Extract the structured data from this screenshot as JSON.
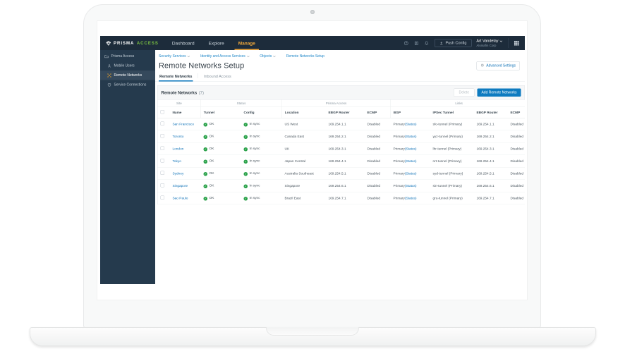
{
  "colors": {
    "nav_bg": "#1d2c3b",
    "sidebar_bg": "#253a4d",
    "sidebar_active_bg": "#35495c",
    "brand_green": "#7ac142",
    "active_yellow": "#f2a93b",
    "link_blue": "#1173b8",
    "breadcrumb_blue": "#1d86c8",
    "primary_button_blue": "#0e7bc0",
    "status_green": "#28a148",
    "tab_underline_blue": "#0f7ac0"
  },
  "nav": {
    "brand": {
      "word1": "PRISMA",
      "word2": "ACCESS"
    },
    "menu": [
      {
        "label": "Dashboard",
        "active": false
      },
      {
        "label": "Explore",
        "active": false
      },
      {
        "label": "Manage",
        "active": true
      }
    ],
    "icons": [
      "help-icon",
      "tasks-icon",
      "bell-icon"
    ],
    "push_config_label": "Push Config",
    "user": {
      "name": "Art Vandelay",
      "org": "Aloisafin Corp"
    }
  },
  "sidebar": {
    "root": {
      "label": "Prisma Access",
      "icon": "folder-icon"
    },
    "items": [
      {
        "label": "Mobile Users",
        "icon": "mobile-users-icon",
        "active": false
      },
      {
        "label": "Remote Networks",
        "icon": "remote-networks-icon",
        "active": true
      },
      {
        "label": "Service Connections",
        "icon": "service-connections-icon",
        "active": false
      }
    ]
  },
  "breadcrumb": [
    {
      "label": "Security Services",
      "caret": true
    },
    {
      "label": "Identity and Access Services",
      "caret": true
    },
    {
      "label": "Objects",
      "caret": true
    },
    {
      "label": "Remote Networks Setup",
      "caret": false
    }
  ],
  "page": {
    "title": "Remote Networks Setup",
    "advanced_settings_label": "Advanced Settings",
    "tabs": [
      {
        "label": "Remote Networks",
        "active": true
      },
      {
        "label": "Inbound Access",
        "active": false
      }
    ]
  },
  "table": {
    "title": "Remote Networks",
    "count": "(7)",
    "delete_label": "Delete",
    "add_label": "Add Remote Networks",
    "groups": [
      {
        "label": "Site",
        "span": 2
      },
      {
        "label": "Status",
        "span": 2
      },
      {
        "label": "Prisma Access",
        "span": 3
      },
      {
        "label": "Links",
        "span": 4
      }
    ],
    "columns": [
      "Name",
      "Tunnel",
      "Config",
      "Location",
      "EBGP Router",
      "ECMP",
      "BGP",
      "IPSec Tunnel",
      "EBGP Router",
      "ECMP"
    ],
    "rows": [
      {
        "name": "San Francisco",
        "tunnel": "OK",
        "config": "In sync",
        "location": "US West",
        "ebgp_router": "169.254.1.1",
        "ecmp": "Disabled",
        "bgp": "Primary",
        "bgp_link": "(Status)",
        "ipsec_tunnel": "sfo-tunnel (Primary)",
        "links_ebgp_router": "169.254.1.1",
        "links_ecmp": "Disabled"
      },
      {
        "name": "Toronto",
        "tunnel": "OK",
        "config": "In sync",
        "location": "Canada East",
        "ebgp_router": "169.254.2.1",
        "ecmp": "Disabled",
        "bgp": "Primary",
        "bgp_link": "(Status)",
        "ipsec_tunnel": "yyz-tunnel (Primary)",
        "links_ebgp_router": "169.254.2.1",
        "links_ecmp": "Disabled"
      },
      {
        "name": "London",
        "tunnel": "OK",
        "config": "In sync",
        "location": "UK",
        "ebgp_router": "169.254.3.1",
        "ecmp": "Disabled",
        "bgp": "Primary",
        "bgp_link": "(Status)",
        "ipsec_tunnel": "lhr-tunnel (Primary)",
        "links_ebgp_router": "169.254.3.1",
        "links_ecmp": "Disabled"
      },
      {
        "name": "Tokyo",
        "tunnel": "OK",
        "config": "In sync",
        "location": "Japan Central",
        "ebgp_router": "169.254.4.1",
        "ecmp": "Disabled",
        "bgp": "Primary",
        "bgp_link": "(Status)",
        "ipsec_tunnel": "nrt-tunnel (Primary)",
        "links_ebgp_router": "169.254.4.1",
        "links_ecmp": "Disabled"
      },
      {
        "name": "Sydney",
        "tunnel": "OK",
        "config": "In sync",
        "location": "Australia Southeast",
        "ebgp_router": "169.254.5.1",
        "ecmp": "Disabled",
        "bgp": "Primary",
        "bgp_link": "(Status)",
        "ipsec_tunnel": "syd-tunnel (Primary)",
        "links_ebgp_router": "169.254.5.1",
        "links_ecmp": "Disabled"
      },
      {
        "name": "Singapore",
        "tunnel": "OK",
        "config": "In sync",
        "location": "Singapore",
        "ebgp_router": "169.254.6.1",
        "ecmp": "Disabled",
        "bgp": "Primary",
        "bgp_link": "(Status)",
        "ipsec_tunnel": "sin-tunnel (Primary)",
        "links_ebgp_router": "169.254.6.1",
        "links_ecmp": "Disabled"
      },
      {
        "name": "Sao Paulo",
        "tunnel": "OK",
        "config": "In sync",
        "location": "Brazil East",
        "ebgp_router": "169.254.7.1",
        "ecmp": "Disabled",
        "bgp": "Primary",
        "bgp_link": "(Status)",
        "ipsec_tunnel": "gru-tunnel (Primary)",
        "links_ebgp_router": "169.254.7.1",
        "links_ecmp": "Disabled"
      }
    ]
  }
}
